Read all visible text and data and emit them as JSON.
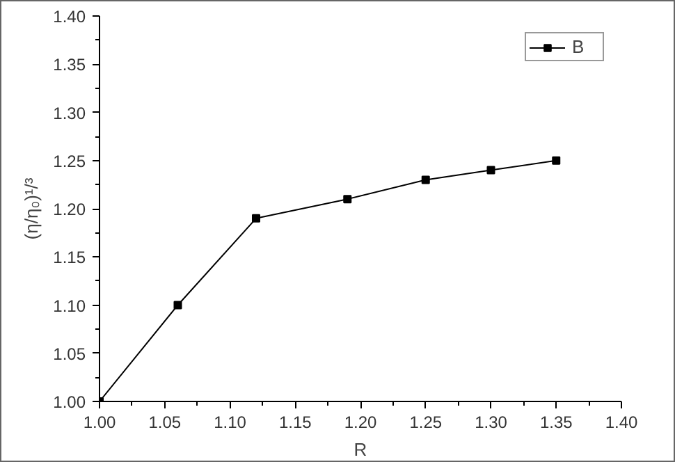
{
  "chart_data": {
    "type": "line",
    "xlabel": "R",
    "ylabel": "(η/η₀)¹/³",
    "x": [
      1.0,
      1.06,
      1.12,
      1.19,
      1.25,
      1.3,
      1.35
    ],
    "series": [
      {
        "name": "B",
        "color": "#000000",
        "values": [
          1.0,
          1.1,
          1.19,
          1.21,
          1.23,
          1.24,
          1.25
        ]
      }
    ],
    "xlim": [
      1.0,
      1.4
    ],
    "xticks": [
      {
        "value": 1.0,
        "label": "1.00"
      },
      1.05,
      {
        "value": 1.1,
        "label": "1.10"
      },
      1.15,
      {
        "value": 1.2,
        "label": "1.20"
      },
      1.25,
      {
        "value": 1.3,
        "label": "1.30"
      },
      1.35,
      {
        "value": 1.4,
        "label": "1.40"
      }
    ],
    "ylim": [
      1.0,
      1.4
    ],
    "yticks": [
      {
        "value": 1.0,
        "label": "1.00"
      },
      1.05,
      {
        "value": 1.1,
        "label": "1.10"
      },
      1.15,
      {
        "value": 1.2,
        "label": "1.20"
      },
      1.25,
      {
        "value": 1.3,
        "label": "1.30"
      },
      1.35,
      {
        "value": 1.4,
        "label": "1.40"
      }
    ],
    "grid": false,
    "legend": "top right",
    "marker": "square",
    "line_style": "solid"
  }
}
